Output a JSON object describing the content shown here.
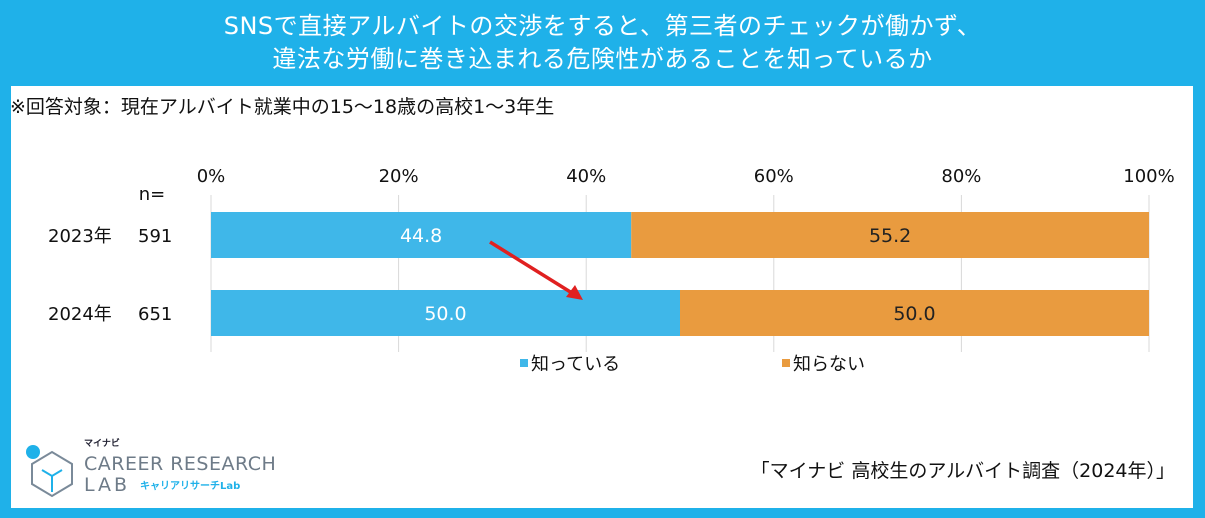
{
  "title_lines": [
    "SNSで直接アルバイトの交渉をすると、第三者のチェックが働かず、",
    "違法な労働に巻き込まれる危険性があることを知っているか"
  ],
  "note": "※回答対象：現在アルバイト就業中の15～18歳の高校1～3年生",
  "n_label": "n=",
  "source": "「マイナビ 高校生のアルバイト調査（2024年）」",
  "brand": {
    "top": "マイナビ",
    "line1": "CAREER RESEARCH",
    "line2": "LAB",
    "sub": "キャリアリサーチLab"
  },
  "colors": {
    "frame": "#1fb1e9",
    "know": "#3fb7e9",
    "dont_know": "#e99b3f",
    "arrow": "#e02020"
  },
  "chart_data": {
    "type": "bar",
    "orientation": "horizontal",
    "stacked": true,
    "percent": true,
    "xlim": [
      0,
      100
    ],
    "ticks": [
      "0%",
      "20%",
      "40%",
      "60%",
      "80%",
      "100%"
    ],
    "tick_values": [
      0,
      20,
      40,
      60,
      80,
      100
    ],
    "categories": [
      {
        "label": "2023年",
        "n": "591"
      },
      {
        "label": "2024年",
        "n": "651"
      }
    ],
    "series": [
      {
        "name": "知っている",
        "values": [
          44.8,
          50.0
        ],
        "labels": [
          "44.8",
          "50.0"
        ]
      },
      {
        "name": "知らない",
        "values": [
          55.2,
          50.0
        ],
        "labels": [
          "55.2",
          "50.0"
        ]
      }
    ],
    "legend_position": "bottom",
    "annotation": "arrow from 2023 bar to 2024 bar indicating increase"
  }
}
